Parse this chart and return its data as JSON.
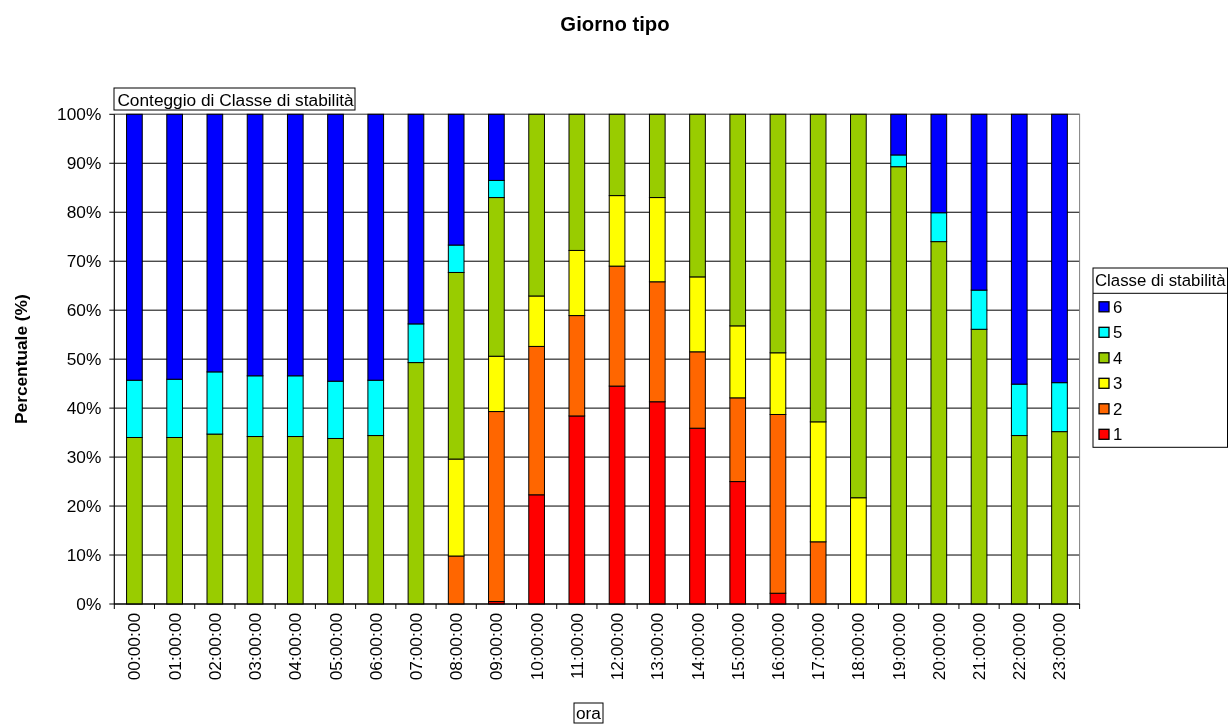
{
  "chart_data": {
    "type": "bar",
    "title": "Giorno tipo",
    "xlabel": "ora",
    "ylabel": "Percentuale (%)",
    "legend_title": "Classe di stabilità",
    "annotations": [
      "Conteggio di Classe di stabilità"
    ],
    "categories": [
      "00:00:00",
      "01:00:00",
      "02:00:00",
      "03:00:00",
      "04:00:00",
      "05:00:00",
      "06:00:00",
      "07:00:00",
      "08:00:00",
      "09:00:00",
      "10:00:00",
      "11:00:00",
      "12:00:00",
      "13:00:00",
      "14:00:00",
      "15:00:00",
      "16:00:00",
      "17:00:00",
      "18:00:00",
      "19:00:00",
      "20:00:00",
      "21:00:00",
      "22:00:00",
      "23:00:00"
    ],
    "series": [
      {
        "name": "1",
        "color": "#ff0000",
        "values": [
          0,
          0,
          0,
          0,
          0,
          0,
          0,
          0,
          0,
          0.5,
          22.3,
          38.4,
          44.5,
          41.3,
          35.9,
          25.0,
          2.2,
          0,
          0,
          0,
          0,
          0,
          0,
          0
        ]
      },
      {
        "name": "2",
        "color": "#ff6600",
        "values": [
          0,
          0,
          0,
          0,
          0,
          0,
          0,
          0,
          9.8,
          38.8,
          30.3,
          20.5,
          24.5,
          24.5,
          15.6,
          17.1,
          36.5,
          12.7,
          0,
          0,
          0,
          0,
          0,
          0
        ]
      },
      {
        "name": "3",
        "color": "#ffff00",
        "values": [
          0,
          0,
          0,
          0,
          0,
          0,
          0,
          0,
          19.8,
          11.3,
          10.3,
          13.3,
          14.4,
          17.2,
          15.3,
          14.7,
          12.6,
          24.5,
          21.7,
          0,
          0,
          0,
          0,
          0
        ]
      },
      {
        "name": "4",
        "color": "#99cc00",
        "values": [
          34.0,
          34.0,
          34.7,
          34.2,
          34.2,
          33.8,
          34.4,
          49.3,
          38.1,
          32.4,
          37.1,
          27.8,
          16.6,
          17.0,
          33.2,
          43.2,
          48.7,
          62.8,
          78.3,
          89.3,
          74.0,
          56.1,
          34.4,
          35.2
        ]
      },
      {
        "name": "5",
        "color": "#00ffff",
        "values": [
          11.7,
          11.9,
          12.7,
          12.4,
          12.4,
          11.7,
          11.3,
          7.9,
          5.6,
          3.5,
          0,
          0,
          0,
          0,
          0,
          0,
          0,
          0,
          0,
          2.4,
          5.9,
          8.0,
          10.5,
          10.0
        ]
      },
      {
        "name": "6",
        "color": "#0000ff",
        "values": [
          54.3,
          54.1,
          52.6,
          53.4,
          53.4,
          54.5,
          54.3,
          42.8,
          26.7,
          13.5,
          0,
          0,
          0,
          0,
          0,
          0,
          0,
          0,
          0,
          8.3,
          20.1,
          35.9,
          55.1,
          54.8
        ]
      }
    ],
    "stacked": true,
    "ylim": [
      0,
      100
    ],
    "yticks": [
      {
        "value": 0,
        "label": "0%"
      },
      {
        "value": 10,
        "label": "10%"
      },
      {
        "value": 20,
        "label": "20%"
      },
      {
        "value": 30,
        "label": "30%"
      },
      {
        "value": 40,
        "label": "40%"
      },
      {
        "value": 50,
        "label": "50%"
      },
      {
        "value": 60,
        "label": "60%"
      },
      {
        "value": 70,
        "label": "70%"
      },
      {
        "value": 80,
        "label": "80%"
      },
      {
        "value": 90,
        "label": "90%"
      },
      {
        "value": 100,
        "label": "100%"
      }
    ],
    "grid": "y",
    "legend": "right"
  }
}
